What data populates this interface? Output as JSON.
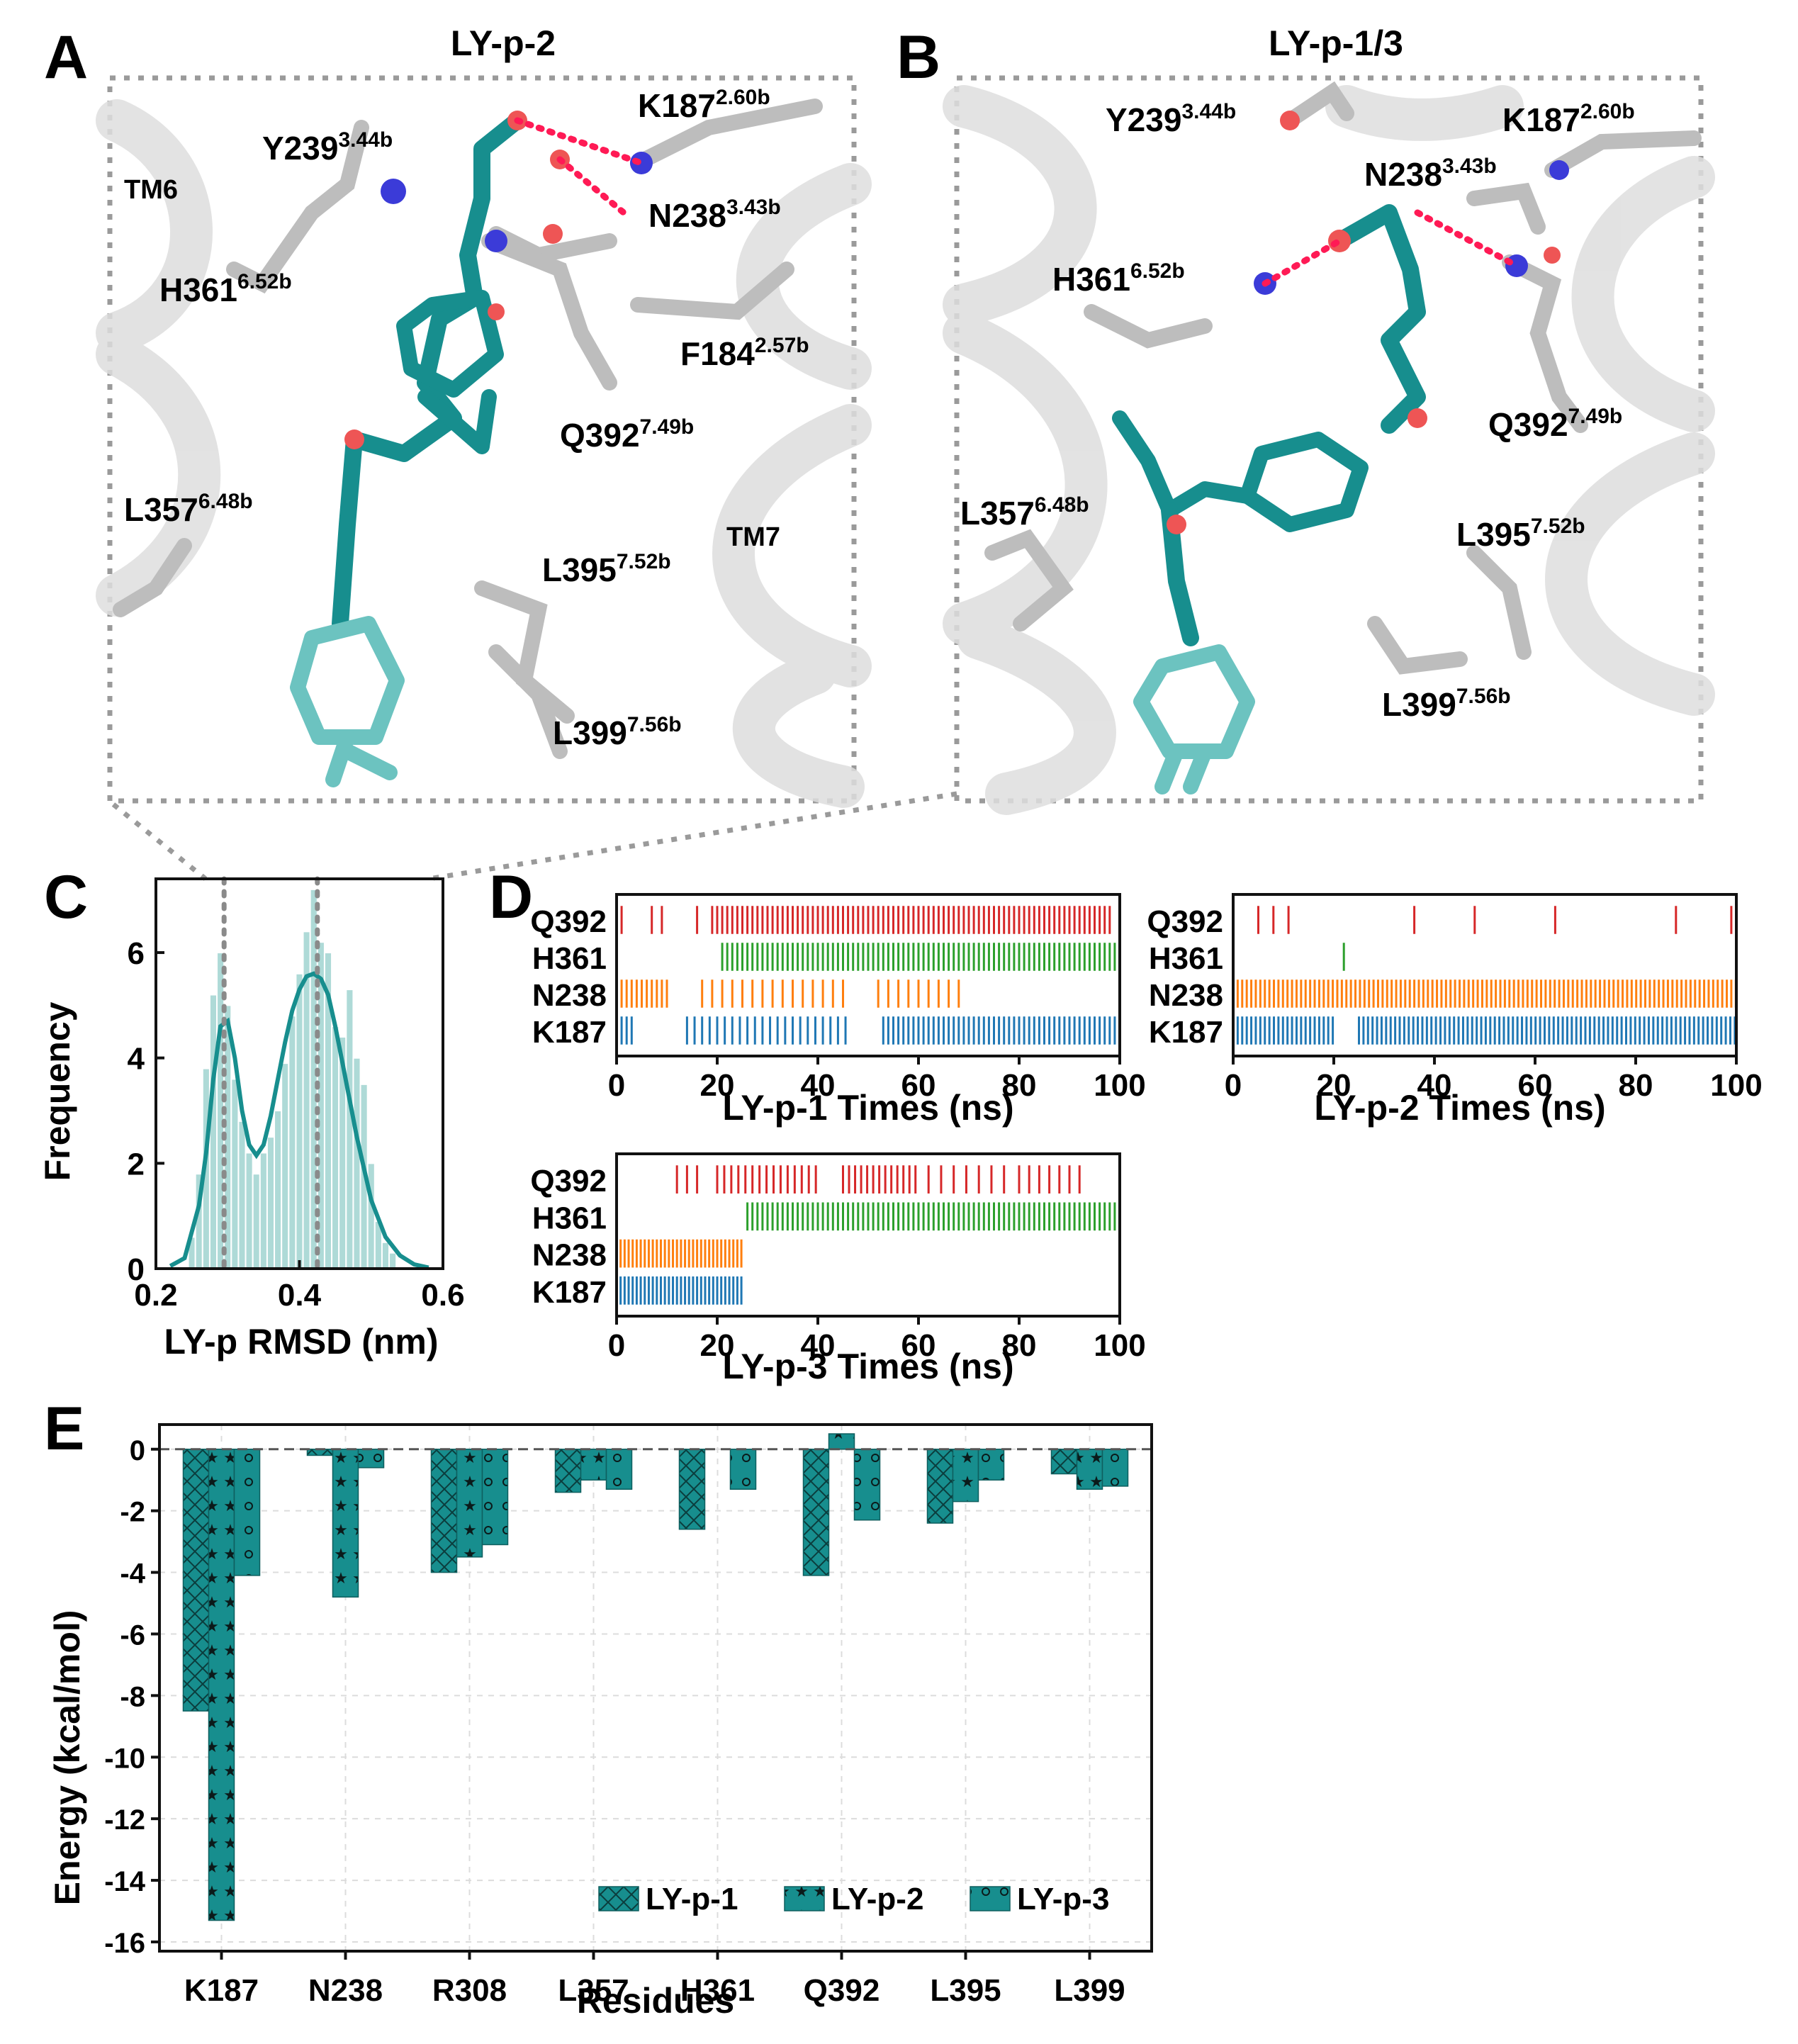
{
  "panels": {
    "A": {
      "letter": "A",
      "title": "LY-p-2",
      "labels": [
        {
          "text": "Y239",
          "sup": "3.44b"
        },
        {
          "text": "K187",
          "sup": "2.60b"
        },
        {
          "text": "TM6",
          "sup": ""
        },
        {
          "text": "N238",
          "sup": "3.43b"
        },
        {
          "text": "H361",
          "sup": "6.52b"
        },
        {
          "text": "F184",
          "sup": "2.57b"
        },
        {
          "text": "Q392",
          "sup": "7.49b"
        },
        {
          "text": "L357",
          "sup": "6.48b"
        },
        {
          "text": "TM7",
          "sup": ""
        },
        {
          "text": "L395",
          "sup": "7.52b"
        },
        {
          "text": "L399",
          "sup": "7.56b"
        }
      ]
    },
    "B": {
      "letter": "B",
      "title": "LY-p-1/3",
      "labels": [
        {
          "text": "Y239",
          "sup": "3.44b"
        },
        {
          "text": "K187",
          "sup": "2.60b"
        },
        {
          "text": "N238",
          "sup": "3.43b"
        },
        {
          "text": "H361",
          "sup": "6.52b"
        },
        {
          "text": "Q392",
          "sup": "7.49b"
        },
        {
          "text": "L357",
          "sup": "6.48b"
        },
        {
          "text": "L395",
          "sup": "7.52b"
        },
        {
          "text": "L399",
          "sup": "7.56b"
        }
      ]
    },
    "C": {
      "letter": "C"
    },
    "D": {
      "letter": "D"
    },
    "E": {
      "letter": "E"
    }
  },
  "colors": {
    "teal": "#178e8e",
    "teal_light": "#a6d6d3",
    "Q392": "#d62728",
    "H361": "#2ca02c",
    "N238": "#ff7f0e",
    "K187": "#1f77b4",
    "hbond": "#ff1a55"
  },
  "chart_data": [
    {
      "panel": "C",
      "type": "histogram",
      "xlabel": "LY-p RMSD (nm)",
      "ylabel": "Frequency",
      "xlim": [
        0.2,
        0.6
      ],
      "ylim": [
        0,
        7.4
      ],
      "xticks": [
        0.2,
        0.4,
        0.6
      ],
      "yticks": [
        0,
        2,
        4,
        6
      ],
      "bins": [
        0.25,
        0.26,
        0.27,
        0.28,
        0.29,
        0.3,
        0.31,
        0.32,
        0.33,
        0.34,
        0.35,
        0.36,
        0.37,
        0.38,
        0.39,
        0.4,
        0.41,
        0.42,
        0.43,
        0.44,
        0.45,
        0.46,
        0.47,
        0.48,
        0.49,
        0.5,
        0.51,
        0.52,
        0.53
      ],
      "bin_width": 0.01,
      "frequency": [
        0.6,
        1.8,
        3.8,
        5.2,
        6.0,
        5.0,
        3.6,
        2.8,
        2.2,
        1.8,
        2.2,
        2.5,
        3.0,
        3.9,
        4.8,
        5.6,
        6.4,
        7.2,
        6.2,
        6.0,
        4.6,
        4.4,
        5.3,
        4.0,
        3.5,
        2.0,
        0.9,
        0.5,
        0.3
      ],
      "kde_x": [
        0.22,
        0.24,
        0.26,
        0.27,
        0.28,
        0.29,
        0.3,
        0.31,
        0.32,
        0.33,
        0.34,
        0.35,
        0.36,
        0.37,
        0.38,
        0.39,
        0.4,
        0.41,
        0.42,
        0.43,
        0.44,
        0.45,
        0.46,
        0.47,
        0.48,
        0.49,
        0.5,
        0.52,
        0.54,
        0.56,
        0.58
      ],
      "kde_y": [
        0.05,
        0.2,
        1.2,
        2.2,
        3.6,
        4.6,
        4.7,
        4.0,
        3.0,
        2.35,
        2.15,
        2.35,
        2.9,
        3.6,
        4.3,
        4.9,
        5.3,
        5.55,
        5.6,
        5.5,
        5.2,
        4.6,
        3.9,
        3.2,
        2.5,
        1.9,
        1.3,
        0.6,
        0.25,
        0.08,
        0.02
      ],
      "reference_lines_x": [
        0.295,
        0.425
      ]
    },
    {
      "panel": "D",
      "type": "event-raster",
      "charts": [
        {
          "xlabel": "LY-p-1 Times (ns)",
          "xlim": [
            0,
            100
          ],
          "xticks": [
            0,
            20,
            40,
            60,
            80,
            100
          ],
          "rows": [
            "Q392",
            "H361",
            "N238",
            "K187"
          ],
          "events": {
            "Q392": [
              {
                "start": 1,
                "end": 1,
                "step": 1
              },
              {
                "start": 7,
                "end": 9,
                "step": 2
              },
              {
                "start": 16,
                "end": 19,
                "step": 3
              },
              {
                "start": 20,
                "end": 98,
                "step": 1
              }
            ],
            "H361": [
              {
                "start": 21,
                "end": 99,
                "step": 1
              }
            ],
            "N238": [
              {
                "start": 1,
                "end": 10,
                "step": 1
              },
              {
                "start": 17,
                "end": 46,
                "step": 2
              },
              {
                "start": 52,
                "end": 68,
                "step": 2
              }
            ],
            "K187": [
              {
                "start": 1,
                "end": 3,
                "step": 1
              },
              {
                "start": 14,
                "end": 46,
                "step": 1.5
              },
              {
                "start": 53,
                "end": 99,
                "step": 1
              }
            ]
          }
        },
        {
          "xlabel": "LY-p-2 Times (ns)",
          "xlim": [
            0,
            100
          ],
          "xticks": [
            0,
            20,
            40,
            60,
            80,
            100
          ],
          "rows": [
            "Q392",
            "H361",
            "N238",
            "K187"
          ],
          "events": {
            "Q392": [
              {
                "start": 5,
                "end": 11,
                "step": 3
              },
              {
                "start": 36,
                "end": 36,
                "step": 1
              },
              {
                "start": 48,
                "end": 48,
                "step": 1
              },
              {
                "start": 64,
                "end": 64,
                "step": 1
              },
              {
                "start": 88,
                "end": 88,
                "step": 1
              },
              {
                "start": 99,
                "end": 99,
                "step": 1
              }
            ],
            "H361": [
              {
                "start": 22,
                "end": 22,
                "step": 1
              }
            ],
            "N238": [
              {
                "start": 0,
                "end": 100,
                "step": 0.9
              }
            ],
            "K187": [
              {
                "start": 0,
                "end": 20,
                "step": 0.9
              },
              {
                "start": 25,
                "end": 100,
                "step": 0.9
              }
            ]
          }
        },
        {
          "xlabel": "LY-p-3 Times (ns)",
          "xlim": [
            0,
            100
          ],
          "xticks": [
            0,
            20,
            40,
            60,
            80,
            100
          ],
          "rows": [
            "Q392",
            "H361",
            "N238",
            "K187"
          ],
          "events": {
            "Q392": [
              {
                "start": 12,
                "end": 16,
                "step": 2
              },
              {
                "start": 20,
                "end": 40,
                "step": 1.4
              },
              {
                "start": 45,
                "end": 60,
                "step": 1.2
              },
              {
                "start": 62,
                "end": 78,
                "step": 2.5
              },
              {
                "start": 80,
                "end": 92,
                "step": 2
              }
            ],
            "H361": [
              {
                "start": 26,
                "end": 99,
                "step": 1
              }
            ],
            "N238": [
              {
                "start": 0,
                "end": 25,
                "step": 0.8
              }
            ],
            "K187": [
              {
                "start": 0,
                "end": 25,
                "step": 0.8
              }
            ]
          }
        }
      ]
    },
    {
      "panel": "E",
      "type": "bar",
      "xlabel": "Residues",
      "ylabel": "Energy (kcal/mol)",
      "ylim": [
        -16.3,
        0.8
      ],
      "yticks": [
        0,
        -2,
        -4,
        -6,
        -8,
        -10,
        -12,
        -14,
        -16
      ],
      "categories": [
        "K187",
        "N238",
        "R308",
        "L357",
        "H361",
        "Q392",
        "L395",
        "L399"
      ],
      "series": [
        {
          "name": "LY-p-1",
          "pattern": "crosshatch",
          "values": [
            -8.5,
            -0.2,
            -4.0,
            -1.4,
            -2.6,
            -4.1,
            -2.4,
            -0.8
          ]
        },
        {
          "name": "LY-p-2",
          "pattern": "stars",
          "values": [
            -15.3,
            -4.8,
            -3.5,
            -1.0,
            0.0,
            0.5,
            -1.7,
            -1.3
          ]
        },
        {
          "name": "LY-p-3",
          "pattern": "circles",
          "values": [
            -4.1,
            -0.6,
            -3.1,
            -1.3,
            -1.3,
            -2.3,
            -1.0,
            -1.2
          ]
        }
      ],
      "legend": "bottom-right",
      "zero_line": "dashed"
    }
  ]
}
